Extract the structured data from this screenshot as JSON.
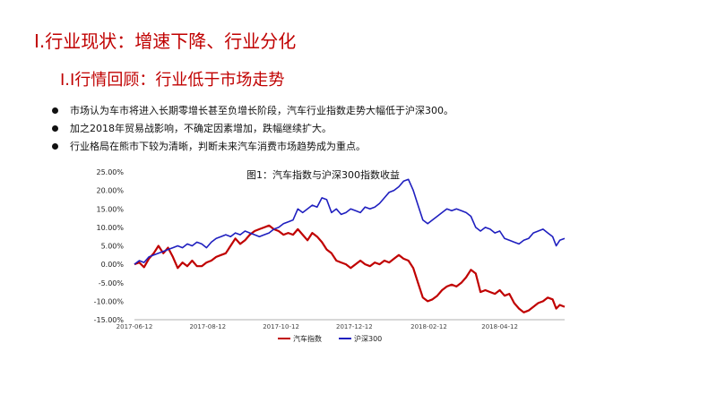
{
  "slide": {
    "title": "I.行业现状：增速下降、行业分化",
    "subtitle": "I.I行情回顾：行业低于市场走势",
    "bullets": [
      "市场认为车市将进入长期零增长甚至负增长阶段，汽车行业指数走势大幅低于沪深300。",
      "加之2018年贸易战影响，不确定因素增加，跌幅继续扩大。",
      "行业格局在熊市下较为清晰，判断未来汽车消费市场趋势成为重点。"
    ]
  },
  "chart_data": {
    "type": "line",
    "title": "图1：汽车指数与沪深300指数收益",
    "xlabel": "",
    "ylabel": "",
    "ylim": [
      -0.15,
      0.25
    ],
    "yticks": [
      -0.15,
      -0.1,
      -0.05,
      0.0,
      0.05,
      0.1,
      0.15,
      0.2,
      0.25
    ],
    "ytick_labels": [
      "-15.00%",
      "-10.00%",
      "-5.00%",
      "0.00%",
      "5.00%",
      "10.00%",
      "15.00%",
      "20.00%",
      "25.00%"
    ],
    "x_range": [
      "2017-06-12",
      "2018-06-05"
    ],
    "xtick_labels": [
      "2017-06-12",
      "2017-08-12",
      "2017-10-12",
      "2017-12-12",
      "2018-02-12",
      "2018-04-12"
    ],
    "legend_position": "bottom",
    "grid": false,
    "series": [
      {
        "name": "汽车指数",
        "color": "#c00000",
        "points": [
          [
            "2017-06-12",
            0.0
          ],
          [
            "2017-06-16",
            0.005
          ],
          [
            "2017-06-20",
            -0.008
          ],
          [
            "2017-06-24",
            0.015
          ],
          [
            "2017-06-28",
            0.03
          ],
          [
            "2017-07-02",
            0.05
          ],
          [
            "2017-07-06",
            0.03
          ],
          [
            "2017-07-10",
            0.045
          ],
          [
            "2017-07-14",
            0.02
          ],
          [
            "2017-07-18",
            -0.01
          ],
          [
            "2017-07-22",
            0.005
          ],
          [
            "2017-07-26",
            -0.005
          ],
          [
            "2017-07-30",
            0.01
          ],
          [
            "2017-08-03",
            -0.005
          ],
          [
            "2017-08-07",
            -0.005
          ],
          [
            "2017-08-11",
            0.005
          ],
          [
            "2017-08-15",
            0.01
          ],
          [
            "2017-08-19",
            0.02
          ],
          [
            "2017-08-23",
            0.025
          ],
          [
            "2017-08-27",
            0.03
          ],
          [
            "2017-08-31",
            0.05
          ],
          [
            "2017-09-04",
            0.07
          ],
          [
            "2017-09-08",
            0.055
          ],
          [
            "2017-09-12",
            0.065
          ],
          [
            "2017-09-16",
            0.08
          ],
          [
            "2017-09-20",
            0.09
          ],
          [
            "2017-09-24",
            0.095
          ],
          [
            "2017-09-28",
            0.1
          ],
          [
            "2017-10-02",
            0.105
          ],
          [
            "2017-10-06",
            0.095
          ],
          [
            "2017-10-10",
            0.09
          ],
          [
            "2017-10-14",
            0.08
          ],
          [
            "2017-10-18",
            0.085
          ],
          [
            "2017-10-22",
            0.08
          ],
          [
            "2017-10-26",
            0.095
          ],
          [
            "2017-10-30",
            0.08
          ],
          [
            "2017-11-03",
            0.065
          ],
          [
            "2017-11-07",
            0.085
          ],
          [
            "2017-11-11",
            0.075
          ],
          [
            "2017-11-15",
            0.06
          ],
          [
            "2017-11-19",
            0.04
          ],
          [
            "2017-11-23",
            0.03
          ],
          [
            "2017-11-27",
            0.01
          ],
          [
            "2017-12-01",
            0.005
          ],
          [
            "2017-12-05",
            0.0
          ],
          [
            "2017-12-09",
            -0.01
          ],
          [
            "2017-12-13",
            0.0
          ],
          [
            "2017-12-17",
            0.01
          ],
          [
            "2017-12-21",
            0.0
          ],
          [
            "2017-12-25",
            -0.005
          ],
          [
            "2017-12-29",
            0.005
          ],
          [
            "2018-01-02",
            0.0
          ],
          [
            "2018-01-06",
            0.01
          ],
          [
            "2018-01-10",
            0.005
          ],
          [
            "2018-01-14",
            0.015
          ],
          [
            "2018-01-18",
            0.025
          ],
          [
            "2018-01-22",
            0.015
          ],
          [
            "2018-01-26",
            0.01
          ],
          [
            "2018-01-30",
            -0.01
          ],
          [
            "2018-02-03",
            -0.05
          ],
          [
            "2018-02-07",
            -0.09
          ],
          [
            "2018-02-11",
            -0.1
          ],
          [
            "2018-02-15",
            -0.095
          ],
          [
            "2018-02-19",
            -0.085
          ],
          [
            "2018-02-23",
            -0.07
          ],
          [
            "2018-02-27",
            -0.06
          ],
          [
            "2018-03-03",
            -0.055
          ],
          [
            "2018-03-07",
            -0.06
          ],
          [
            "2018-03-11",
            -0.05
          ],
          [
            "2018-03-15",
            -0.035
          ],
          [
            "2018-03-19",
            -0.015
          ],
          [
            "2018-03-23",
            -0.025
          ],
          [
            "2018-03-27",
            -0.075
          ],
          [
            "2018-03-31",
            -0.07
          ],
          [
            "2018-04-04",
            -0.075
          ],
          [
            "2018-04-08",
            -0.08
          ],
          [
            "2018-04-12",
            -0.07
          ],
          [
            "2018-04-16",
            -0.085
          ],
          [
            "2018-04-20",
            -0.08
          ],
          [
            "2018-04-24",
            -0.105
          ],
          [
            "2018-04-28",
            -0.12
          ],
          [
            "2018-05-02",
            -0.13
          ],
          [
            "2018-05-06",
            -0.125
          ],
          [
            "2018-05-10",
            -0.115
          ],
          [
            "2018-05-14",
            -0.105
          ],
          [
            "2018-05-18",
            -0.1
          ],
          [
            "2018-05-22",
            -0.09
          ],
          [
            "2018-05-26",
            -0.095
          ],
          [
            "2018-05-29",
            -0.12
          ],
          [
            "2018-06-01",
            -0.11
          ],
          [
            "2018-06-05",
            -0.115
          ]
        ]
      },
      {
        "name": "沪深300",
        "color": "#1f1fbf",
        "points": [
          [
            "2017-06-12",
            0.0
          ],
          [
            "2017-06-16",
            0.01
          ],
          [
            "2017-06-20",
            0.005
          ],
          [
            "2017-06-24",
            0.02
          ],
          [
            "2017-06-28",
            0.025
          ],
          [
            "2017-07-02",
            0.03
          ],
          [
            "2017-07-06",
            0.035
          ],
          [
            "2017-07-10",
            0.04
          ],
          [
            "2017-07-14",
            0.045
          ],
          [
            "2017-07-18",
            0.05
          ],
          [
            "2017-07-22",
            0.045
          ],
          [
            "2017-07-26",
            0.055
          ],
          [
            "2017-07-30",
            0.05
          ],
          [
            "2017-08-03",
            0.06
          ],
          [
            "2017-08-07",
            0.055
          ],
          [
            "2017-08-11",
            0.045
          ],
          [
            "2017-08-15",
            0.06
          ],
          [
            "2017-08-19",
            0.07
          ],
          [
            "2017-08-23",
            0.075
          ],
          [
            "2017-08-27",
            0.08
          ],
          [
            "2017-08-31",
            0.075
          ],
          [
            "2017-09-04",
            0.085
          ],
          [
            "2017-09-08",
            0.08
          ],
          [
            "2017-09-12",
            0.09
          ],
          [
            "2017-09-16",
            0.085
          ],
          [
            "2017-09-20",
            0.08
          ],
          [
            "2017-09-24",
            0.075
          ],
          [
            "2017-09-28",
            0.08
          ],
          [
            "2017-10-02",
            0.085
          ],
          [
            "2017-10-06",
            0.095
          ],
          [
            "2017-10-10",
            0.1
          ],
          [
            "2017-10-14",
            0.11
          ],
          [
            "2017-10-18",
            0.115
          ],
          [
            "2017-10-22",
            0.12
          ],
          [
            "2017-10-26",
            0.15
          ],
          [
            "2017-10-30",
            0.14
          ],
          [
            "2017-11-03",
            0.15
          ],
          [
            "2017-11-07",
            0.16
          ],
          [
            "2017-11-11",
            0.155
          ],
          [
            "2017-11-15",
            0.18
          ],
          [
            "2017-11-19",
            0.175
          ],
          [
            "2017-11-23",
            0.14
          ],
          [
            "2017-11-27",
            0.15
          ],
          [
            "2017-12-01",
            0.135
          ],
          [
            "2017-12-05",
            0.14
          ],
          [
            "2017-12-09",
            0.15
          ],
          [
            "2017-12-13",
            0.145
          ],
          [
            "2017-12-17",
            0.14
          ],
          [
            "2017-12-21",
            0.155
          ],
          [
            "2017-12-25",
            0.15
          ],
          [
            "2017-12-29",
            0.155
          ],
          [
            "2018-01-02",
            0.165
          ],
          [
            "2018-01-06",
            0.18
          ],
          [
            "2018-01-10",
            0.195
          ],
          [
            "2018-01-14",
            0.2
          ],
          [
            "2018-01-18",
            0.21
          ],
          [
            "2018-01-22",
            0.225
          ],
          [
            "2018-01-26",
            0.23
          ],
          [
            "2018-01-30",
            0.2
          ],
          [
            "2018-02-03",
            0.16
          ],
          [
            "2018-02-07",
            0.12
          ],
          [
            "2018-02-11",
            0.11
          ],
          [
            "2018-02-15",
            0.12
          ],
          [
            "2018-02-19",
            0.13
          ],
          [
            "2018-02-23",
            0.14
          ],
          [
            "2018-02-27",
            0.15
          ],
          [
            "2018-03-03",
            0.145
          ],
          [
            "2018-03-07",
            0.15
          ],
          [
            "2018-03-11",
            0.145
          ],
          [
            "2018-03-15",
            0.14
          ],
          [
            "2018-03-19",
            0.13
          ],
          [
            "2018-03-23",
            0.1
          ],
          [
            "2018-03-27",
            0.09
          ],
          [
            "2018-03-31",
            0.1
          ],
          [
            "2018-04-04",
            0.095
          ],
          [
            "2018-04-08",
            0.085
          ],
          [
            "2018-04-12",
            0.09
          ],
          [
            "2018-04-16",
            0.07
          ],
          [
            "2018-04-20",
            0.065
          ],
          [
            "2018-04-24",
            0.06
          ],
          [
            "2018-04-28",
            0.055
          ],
          [
            "2018-05-02",
            0.065
          ],
          [
            "2018-05-06",
            0.07
          ],
          [
            "2018-05-10",
            0.085
          ],
          [
            "2018-05-14",
            0.09
          ],
          [
            "2018-05-18",
            0.095
          ],
          [
            "2018-05-22",
            0.085
          ],
          [
            "2018-05-26",
            0.075
          ],
          [
            "2018-05-29",
            0.05
          ],
          [
            "2018-06-01",
            0.065
          ],
          [
            "2018-06-05",
            0.07
          ]
        ]
      }
    ]
  }
}
